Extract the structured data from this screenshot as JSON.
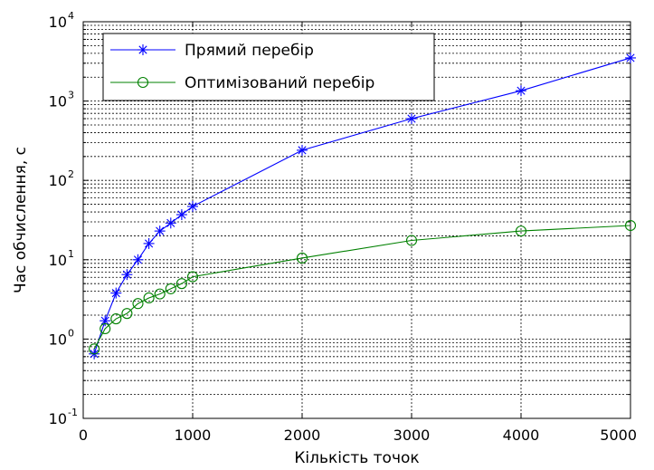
{
  "chart_data": {
    "type": "line",
    "title": "",
    "xlabel": "Кількість точок",
    "ylabel": "Час обчислення, с",
    "x_scale": "linear",
    "y_scale": "log",
    "xlim": [
      0,
      5000
    ],
    "ylim": [
      0.1,
      10000
    ],
    "grid": true,
    "legend_position": "top-left",
    "x_ticks": [
      "0",
      "1000",
      "2000",
      "3000",
      "4000",
      "5000"
    ],
    "y_ticks": [
      {
        "base": "10",
        "exp": "-1"
      },
      {
        "base": "10",
        "exp": "0"
      },
      {
        "base": "10",
        "exp": "1"
      },
      {
        "base": "10",
        "exp": "2"
      },
      {
        "base": "10",
        "exp": "3"
      },
      {
        "base": "10",
        "exp": "4"
      }
    ],
    "series": [
      {
        "name": "Прямий перебір",
        "color": "#0000ff",
        "marker": "asterisk",
        "x": [
          100,
          200,
          300,
          400,
          500,
          600,
          700,
          800,
          900,
          1000,
          2000,
          3000,
          4000,
          5000
        ],
        "y": [
          0.65,
          1.7,
          3.8,
          6.5,
          10,
          16,
          23,
          29,
          37,
          47,
          240,
          600,
          1350,
          3500
        ]
      },
      {
        "name": "Оптимізований перебір",
        "color": "#008000",
        "marker": "circle",
        "x": [
          100,
          200,
          300,
          400,
          500,
          600,
          700,
          800,
          900,
          1000,
          2000,
          3000,
          4000,
          5000
        ],
        "y": [
          0.75,
          1.35,
          1.8,
          2.1,
          2.8,
          3.3,
          3.7,
          4.3,
          5.0,
          6.1,
          10.5,
          17.5,
          23,
          27
        ]
      }
    ]
  }
}
